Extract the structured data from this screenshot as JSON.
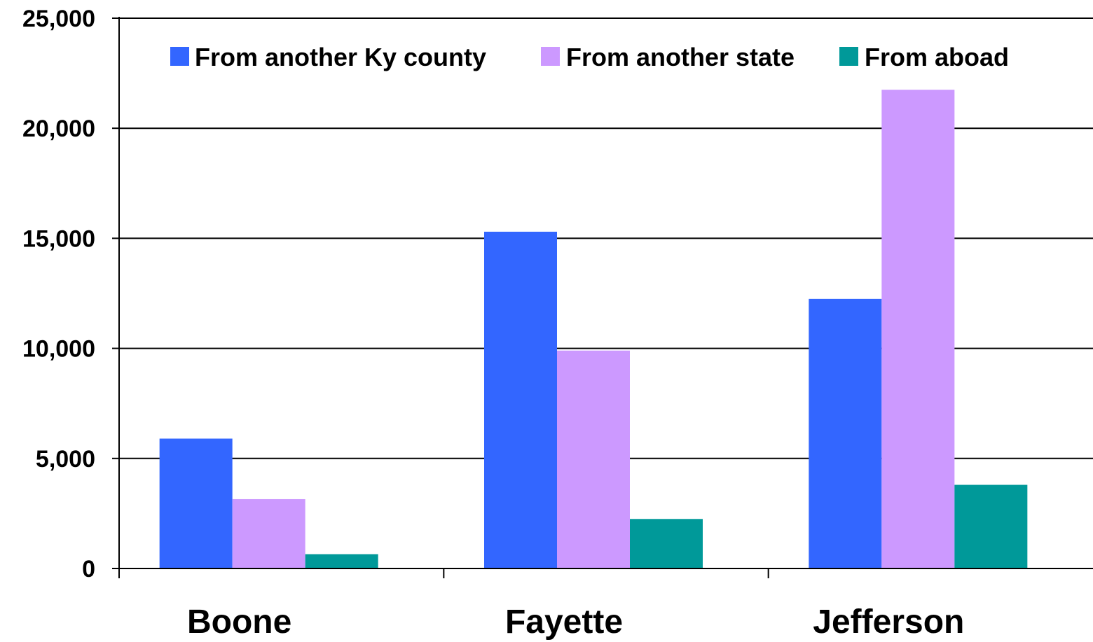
{
  "chart_data": {
    "type": "bar",
    "categories": [
      "Boone",
      "Fayette",
      "Jefferson"
    ],
    "series": [
      {
        "name": "From another Ky county",
        "color": "#3366FF",
        "values": [
          5900,
          15300,
          12250
        ]
      },
      {
        "name": "From another state",
        "color": "#CC99FF",
        "values": [
          3150,
          9900,
          21750
        ]
      },
      {
        "name": "From aboad",
        "color": "#009999",
        "values": [
          650,
          2250,
          3800
        ]
      }
    ],
    "yticks": [
      "0",
      "5,000",
      "10,000",
      "15,000",
      "20,000",
      "25,000"
    ],
    "ylim": [
      0,
      25000
    ],
    "grid": true,
    "legend_position": "top"
  }
}
